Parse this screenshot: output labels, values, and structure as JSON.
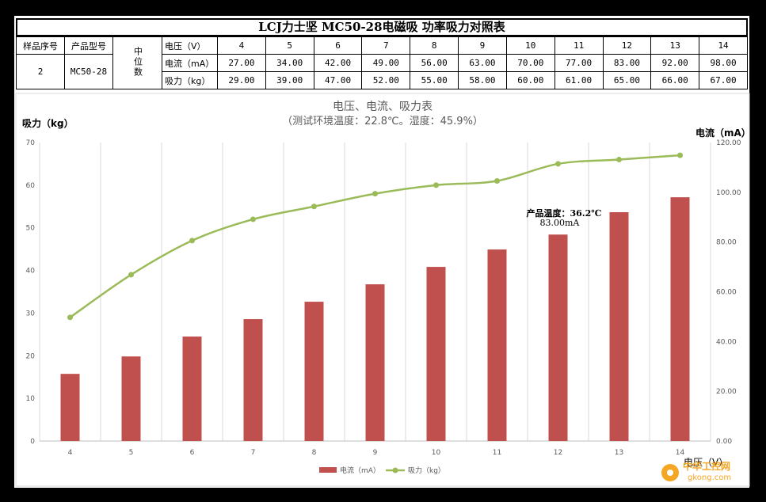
{
  "table": {
    "title": "LCJ力士坚 MC50-28电磁吸 功率吸力对照表",
    "headers": {
      "sample_no": "样品序号",
      "model": "产品型号",
      "median": "中位数"
    },
    "voltage_label": "电压（V）",
    "current_label": "电流（mA）",
    "force_label": "吸力（kg）",
    "sample_value": "2",
    "model_value": "MC50-28",
    "voltages": [
      "4",
      "5",
      "6",
      "7",
      "8",
      "9",
      "10",
      "11",
      "12",
      "13",
      "14"
    ],
    "currents": [
      "27.00",
      "34.00",
      "42.00",
      "49.00",
      "56.00",
      "63.00",
      "70.00",
      "77.00",
      "83.00",
      "92.00",
      "98.00"
    ],
    "forces": [
      "29.00",
      "39.00",
      "47.00",
      "52.00",
      "55.00",
      "58.00",
      "60.00",
      "61.00",
      "65.00",
      "66.00",
      "67.00"
    ]
  },
  "chart_data": {
    "type": "bar",
    "title": "电压、电流、吸力表",
    "subtitle": "（测试环境温度：22.8℃。湿度：45.9%）",
    "xlabel": "电压（V）",
    "ylabel_left": "吸力（kg）",
    "ylabel_right": "电流（mA）",
    "categories": [
      "4",
      "5",
      "6",
      "7",
      "8",
      "9",
      "10",
      "11",
      "12",
      "13",
      "14"
    ],
    "ylim_left": [
      0,
      70
    ],
    "yticks_left": [
      "0",
      "10",
      "20",
      "30",
      "40",
      "50",
      "60",
      "70"
    ],
    "ylim_right": [
      0,
      120
    ],
    "yticks_right": [
      "0.00",
      "20.00",
      "40.00",
      "60.00",
      "80.00",
      "100.00",
      "120.00"
    ],
    "grid": "vertical",
    "legend_position": "bottom",
    "series": [
      {
        "name": "电流（mA）",
        "type": "bar",
        "axis": "right",
        "color": "#c0504d",
        "values": [
          27,
          34,
          42,
          49,
          56,
          63,
          70,
          77,
          83,
          92,
          98
        ]
      },
      {
        "name": "吸力（kg）",
        "type": "line",
        "axis": "left",
        "color": "#9bbb59",
        "values": [
          29,
          39,
          47,
          52,
          55,
          58,
          60,
          61,
          65,
          66,
          67
        ]
      }
    ],
    "annotations": [
      {
        "category": "12",
        "text": "产品温度：36.2℃"
      },
      {
        "category": "12",
        "text": "83.00mA"
      }
    ]
  },
  "watermark": {
    "text": "中华工控网",
    "site": "gkong.com"
  }
}
